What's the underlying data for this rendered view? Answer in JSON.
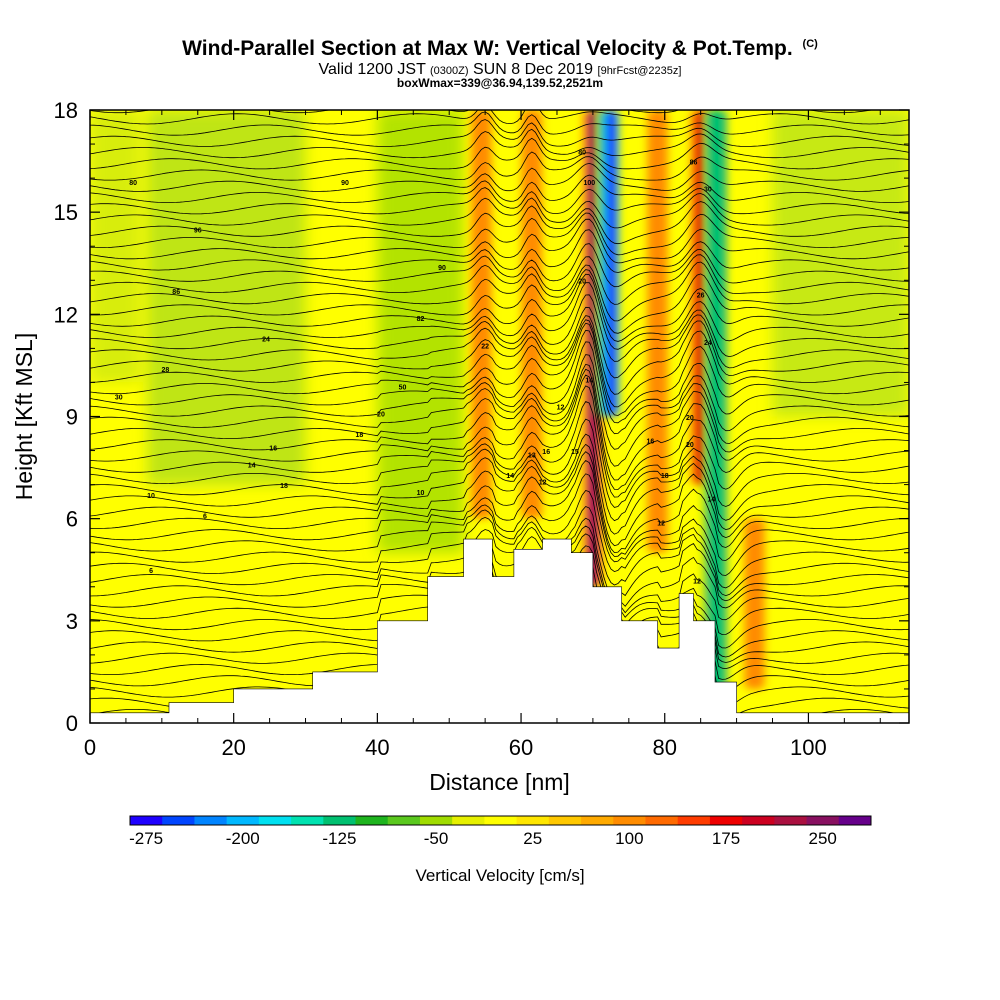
{
  "header": {
    "title": "Wind-Parallel Section at Max W: Vertical Velocity & Pot.Temp.",
    "title_mark": "(C)",
    "subtitle_a": "Valid 1200 JST",
    "subtitle_b": "(0300Z)",
    "subtitle_c": "SUN 8 Dec 2019",
    "subtitle_d": "[9hrFcst@2235z]",
    "subtitle2": "boxWmax=339@36.94,139.52,2521m"
  },
  "chart_data": {
    "type": "heatmap",
    "xlabel": "Distance [nm]",
    "ylabel": "Height [Kft MSL]",
    "xlim": [
      0,
      114
    ],
    "ylim": [
      0,
      18
    ],
    "xticks": [
      "0",
      "20",
      "40",
      "60",
      "80",
      "100"
    ],
    "yticks": [
      "0",
      "3",
      "6",
      "9",
      "12",
      "15",
      "18"
    ],
    "colorbar": {
      "label": "Vertical Velocity [cm/s]",
      "tick_labels": [
        "-275",
        "-200",
        "-125",
        "-50",
        "25",
        "100",
        "175",
        "250"
      ],
      "colors": [
        "#1e00ff",
        "#0045ff",
        "#0084ff",
        "#00b8ff",
        "#00e0f0",
        "#00e2b0",
        "#00c070",
        "#1eb41e",
        "#5ac81e",
        "#a0dc00",
        "#e6f000",
        "#ffff00",
        "#ffe600",
        "#ffc800",
        "#ffaa00",
        "#ff8c00",
        "#ff6a00",
        "#ff3c00",
        "#ee0000",
        "#cc0020",
        "#aa1040",
        "#881060",
        "#66008a"
      ]
    },
    "terrain_profile": {
      "x_nm": [
        0,
        11,
        11,
        20,
        20,
        31,
        31,
        40,
        40,
        47,
        47,
        52,
        52,
        56,
        56,
        59,
        59,
        63,
        63,
        67,
        67,
        70,
        70,
        74,
        74,
        79,
        79,
        82,
        82,
        84,
        84,
        87,
        87,
        90,
        90,
        94,
        94,
        100,
        100,
        114
      ],
      "z_kft": [
        0.3,
        0.3,
        0.6,
        0.6,
        1.0,
        1.0,
        1.5,
        1.5,
        3.0,
        3.0,
        4.3,
        4.3,
        5.4,
        5.4,
        4.3,
        4.3,
        5.1,
        5.1,
        5.4,
        5.4,
        5.0,
        5.0,
        4.0,
        4.0,
        3.0,
        3.0,
        2.2,
        2.2,
        3.8,
        3.8,
        3.0,
        3.0,
        1.2,
        1.2,
        0.3,
        0.3,
        0.3,
        0.3,
        0.3,
        0.3
      ]
    },
    "velocity_features": [
      {
        "kind": "updraft",
        "x_nm": 70.0,
        "z_kft": [
          4,
          18
        ],
        "peak_cms": 250
      },
      {
        "kind": "downdraft",
        "x_nm": 72.0,
        "z_kft": [
          9,
          18
        ],
        "peak_cms": -275
      },
      {
        "kind": "updraft",
        "x_nm": 85.0,
        "z_kft": [
          7,
          18
        ],
        "peak_cms": 200
      },
      {
        "kind": "downdraft",
        "x_nm": 87.0,
        "z_kft": [
          1,
          18
        ],
        "peak_cms": -150
      },
      {
        "kind": "updraft",
        "x_nm": 92.5,
        "z_kft": [
          1,
          6
        ],
        "peak_cms": 125
      },
      {
        "kind": "updraft",
        "x_nm": 54.5,
        "z_kft": [
          6,
          18
        ],
        "peak_cms": 100
      },
      {
        "kind": "updraft",
        "x_nm": 61.5,
        "z_kft": [
          6,
          18
        ],
        "peak_cms": 100
      },
      {
        "kind": "updraft",
        "x_nm": 79.0,
        "z_kft": [
          5,
          18
        ],
        "peak_cms": 100
      }
    ],
    "isentropes": {
      "label_units": "C",
      "levels": [
        -4,
        -2,
        0,
        2,
        4,
        6,
        8,
        10,
        12,
        14,
        16,
        18,
        20,
        22,
        24,
        26,
        28,
        30,
        32,
        34,
        36,
        38,
        40,
        42,
        44,
        46,
        48,
        50,
        52,
        54,
        56,
        58,
        60,
        62,
        64,
        66,
        68,
        70,
        72,
        74,
        76,
        78,
        80,
        82,
        84,
        86,
        88,
        90,
        92,
        94,
        96,
        98,
        100,
        102,
        104,
        106
      ],
      "labels": [
        {
          "text": "80",
          "x_nm": 6,
          "z_kft": 15.8
        },
        {
          "text": "90",
          "x_nm": 35.5,
          "z_kft": 15.8
        },
        {
          "text": "96",
          "x_nm": 15,
          "z_kft": 14.4
        },
        {
          "text": "90",
          "x_nm": 49,
          "z_kft": 13.3
        },
        {
          "text": "86",
          "x_nm": 12,
          "z_kft": 12.6
        },
        {
          "text": "82",
          "x_nm": 46,
          "z_kft": 11.8
        },
        {
          "text": "24",
          "x_nm": 24.5,
          "z_kft": 11.2
        },
        {
          "text": "22",
          "x_nm": 55,
          "z_kft": 11.0
        },
        {
          "text": "28",
          "x_nm": 10.5,
          "z_kft": 10.3
        },
        {
          "text": "30",
          "x_nm": 4,
          "z_kft": 9.5
        },
        {
          "text": "50",
          "x_nm": 43.5,
          "z_kft": 9.8
        },
        {
          "text": "20",
          "x_nm": 40.5,
          "z_kft": 9.0
        },
        {
          "text": "18",
          "x_nm": 37.5,
          "z_kft": 8.4
        },
        {
          "text": "16",
          "x_nm": 25.5,
          "z_kft": 8.0
        },
        {
          "text": "14",
          "x_nm": 22.5,
          "z_kft": 7.5
        },
        {
          "text": "18",
          "x_nm": 27,
          "z_kft": 6.9
        },
        {
          "text": "10",
          "x_nm": 8.5,
          "z_kft": 6.6
        },
        {
          "text": "10",
          "x_nm": 46,
          "z_kft": 6.7
        },
        {
          "text": "6",
          "x_nm": 16,
          "z_kft": 6.0
        },
        {
          "text": "6",
          "x_nm": 8.5,
          "z_kft": 4.4
        },
        {
          "text": "12",
          "x_nm": 63,
          "z_kft": 7.0
        },
        {
          "text": "16",
          "x_nm": 63.5,
          "z_kft": 7.9
        },
        {
          "text": "13",
          "x_nm": 61.5,
          "z_kft": 7.8
        },
        {
          "text": "14",
          "x_nm": 58.5,
          "z_kft": 7.2
        },
        {
          "text": "12",
          "x_nm": 65.5,
          "z_kft": 9.2
        },
        {
          "text": "15",
          "x_nm": 67.5,
          "z_kft": 7.9
        },
        {
          "text": "14",
          "x_nm": 69.5,
          "z_kft": 10.0
        },
        {
          "text": "20",
          "x_nm": 68.5,
          "z_kft": 12.9
        },
        {
          "text": "100",
          "x_nm": 69.5,
          "z_kft": 15.8
        },
        {
          "text": "80",
          "x_nm": 68.5,
          "z_kft": 16.7
        },
        {
          "text": "86",
          "x_nm": 84,
          "z_kft": 16.4
        },
        {
          "text": "30",
          "x_nm": 86,
          "z_kft": 15.6
        },
        {
          "text": "26",
          "x_nm": 85,
          "z_kft": 12.5
        },
        {
          "text": "24",
          "x_nm": 86,
          "z_kft": 11.1
        },
        {
          "text": "20",
          "x_nm": 83.5,
          "z_kft": 8.9
        },
        {
          "text": "20",
          "x_nm": 83.5,
          "z_kft": 8.1
        },
        {
          "text": "16",
          "x_nm": 78,
          "z_kft": 8.2
        },
        {
          "text": "18",
          "x_nm": 80,
          "z_kft": 7.2
        },
        {
          "text": "14",
          "x_nm": 86.5,
          "z_kft": 6.5
        },
        {
          "text": "12",
          "x_nm": 79.5,
          "z_kft": 5.8
        },
        {
          "text": "12",
          "x_nm": 84.5,
          "z_kft": 4.1
        }
      ]
    },
    "grid": false,
    "legend": "colorbar-bottom"
  }
}
